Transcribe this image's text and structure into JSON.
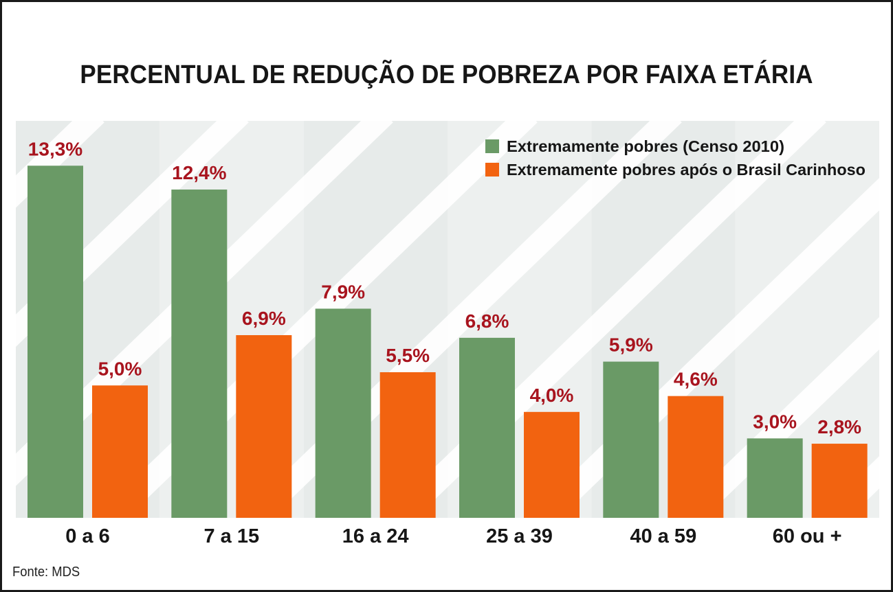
{
  "chart_data": {
    "type": "bar",
    "title": "PERCENTUAL DE REDUÇÃO DE POBREZA POR FAIXA ETÁRIA",
    "categories": [
      "0 a 6",
      "7 a 15",
      "16 a 24",
      "25 a 39",
      "40 a 59",
      "60 ou +"
    ],
    "series": [
      {
        "name": "Extremamente pobres (Censo 2010)",
        "color": "#6a9a66",
        "values": [
          13.3,
          12.4,
          7.9,
          6.8,
          5.9,
          3.0
        ],
        "labels": [
          "13,3%",
          "12,4%",
          "7,9%",
          "6,8%",
          "5,9%",
          "3,0%"
        ]
      },
      {
        "name": "Extremamente pobres após o Brasil Carinhoso",
        "color": "#f26310",
        "values": [
          5.0,
          6.9,
          5.5,
          4.0,
          4.6,
          2.8
        ],
        "labels": [
          "5,0%",
          "6,9%",
          "5,5%",
          "4,0%",
          "4,6%",
          "2,8%"
        ]
      }
    ],
    "ylim": [
      0,
      15
    ],
    "xlabel": "",
    "ylabel": "",
    "grid": false,
    "legend_position": "top-right",
    "label_color": "#a8141e",
    "band_color": "#e7ebea"
  },
  "source": "Fonte: MDS"
}
